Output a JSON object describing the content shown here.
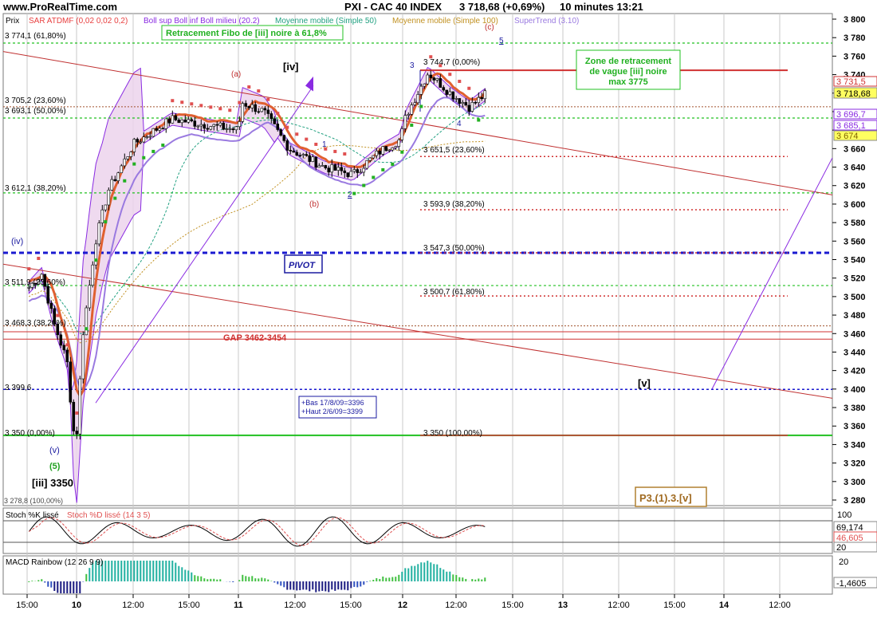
{
  "header": {
    "site": "www.ProRealTime.com",
    "title": "PXI - CAC 40 INDEX",
    "price_change": "3 718,68 (+0,69%)",
    "timeframe": "10 minutes  13:21"
  },
  "price_panel": {
    "label": "Prix",
    "legend": [
      {
        "text": "SAR ATDMF (0,02 0,02 0,2)",
        "color": "#e84040"
      },
      {
        "text": "Boll sup Boll inf Boll milieu (20.2)",
        "color": "#8a2be2"
      },
      {
        "text": "Moyenne mobile (Simple 50)",
        "color": "#20a080"
      },
      {
        "text": "Moyenne mobile (Simple 100)",
        "color": "#c09020"
      },
      {
        "text": "SuperTrend (3.10)",
        "color": "#9a7ae0"
      }
    ],
    "y_ticks": [
      "3 800",
      "3 780",
      "3 760",
      "3 740",
      "3 720",
      "3 700",
      "3 680",
      "3 660",
      "3 640",
      "3 620",
      "3 600",
      "3 580",
      "3 560",
      "3 540",
      "3 520",
      "3 500",
      "3 480",
      "3 460",
      "3 440",
      "3 420",
      "3 400",
      "3 380",
      "3 360",
      "3 340",
      "3 320",
      "3 300",
      "3 280"
    ],
    "badges": [
      {
        "text": "3 731,5",
        "fill": "#ffffff",
        "color": "#d03030"
      },
      {
        "text": "3 718,68",
        "fill": "#ffff60",
        "color": "#000000"
      },
      {
        "text": "3 696,7",
        "fill": "#ffffff",
        "color": "#8a2be2"
      },
      {
        "text": "3 685,1",
        "fill": "#ffffff",
        "color": "#8a2be2"
      },
      {
        "text": "3 674",
        "fill": "#ffff60",
        "color": "#806000"
      }
    ],
    "fibo_left": [
      "3 774,1 (61,80%)",
      "3 705,2 (23,60%)",
      "3 693,1 (50,00%)",
      "3 612,1 (38,20%)",
      "3 511,9 (23,60%)",
      "3 468,3 (38,20%)",
      "3 399,6",
      "3 350 (0,00%)"
    ],
    "fibo_right": [
      "3 744,7 (0,00%)",
      "3 651,5 (23,60%)",
      "3 593,9 (38,20%)",
      "3 547,3 (50,00%)",
      "3 500,7 (61,80%)",
      "3 350 (100,00%)"
    ],
    "annotations": {
      "fibo_box": "Retracement Fibo de [iii] noire à 61,8%",
      "zone_box": "Zone de retracement\nde vague [iii] noire\nmax 3775",
      "pivot": "PIVOT",
      "gap": "GAP 3462-3454",
      "bas_haut": "+Bas 17/8/09=3396\n+Haut 2/6/09=3399",
      "p3": "P3.(1).3.[v]",
      "wave_iv_big": "[iv]",
      "wave_v_big": "[v]",
      "wave_iii": "[iii] 3350",
      "wave_iv_small": "(iv)",
      "wave_v_small": "(v)",
      "wave_5_green": "(5)",
      "wave_a": "(a)",
      "wave_b": "(b)",
      "wave_c": "(c)",
      "n1": "1",
      "n2": "2",
      "n3": "3",
      "n4": "4",
      "n5": "5",
      "overlap_text": "3 278,8 (100,00%)"
    }
  },
  "stoch_panel": {
    "label": "Stoch %K lissé",
    "label2": "Stoch %D lissé (14 3 5)",
    "y_top": "100",
    "badges": [
      {
        "text": "69,174",
        "color": "#000000"
      },
      {
        "text": "46,605",
        "color": "#e05050"
      },
      {
        "text": "20",
        "color": "#000000"
      }
    ]
  },
  "macd_panel": {
    "label": "MACD Rainbow (12 26 9 9)",
    "y_top": "20",
    "badge": "-1,4605"
  },
  "x_axis": {
    "labels": [
      "15:00",
      "10",
      "12:00",
      "15:00",
      "11",
      "12:00",
      "15:00",
      "12",
      "12:00",
      "15:00",
      "13",
      "12:00",
      "15:00",
      "14",
      "12:00"
    ],
    "bold": [
      false,
      true,
      false,
      false,
      true,
      false,
      false,
      true,
      false,
      false,
      true,
      false,
      false,
      true,
      false
    ]
  },
  "chart_data": {
    "type": "candlestick",
    "title": "PXI - CAC 40 INDEX",
    "interval": "10 minutes",
    "last": 3718.68,
    "change_pct": 0.69,
    "ylim": [
      3270,
      3810
    ],
    "key_path": [
      {
        "t": "9 15:00",
        "y": 3510
      },
      {
        "t": "9 ~16:40",
        "y": 3355
      },
      {
        "t": "10 09:10",
        "y": 3460
      },
      {
        "t": "10 10:30",
        "y": 3630
      },
      {
        "t": "10 14:00",
        "y": 3695
      },
      {
        "t": "11 09:30",
        "y": 3715
      },
      {
        "t": "11 12:00",
        "y": 3640
      },
      {
        "t": "11 15:00",
        "y": 3630
      },
      {
        "t": "11 17:00",
        "y": 3660
      },
      {
        "t": "12 10:30",
        "y": 3744.7
      },
      {
        "t": "12 13:21",
        "y": 3718.68
      }
    ],
    "horizontal_levels": [
      3774.1,
      3705.2,
      3693.1,
      3612.1,
      3547.3,
      3511.9,
      3468.3,
      3462,
      3454,
      3399.6,
      3350,
      3744.7,
      3651.5,
      3593.9,
      3500.7
    ]
  }
}
